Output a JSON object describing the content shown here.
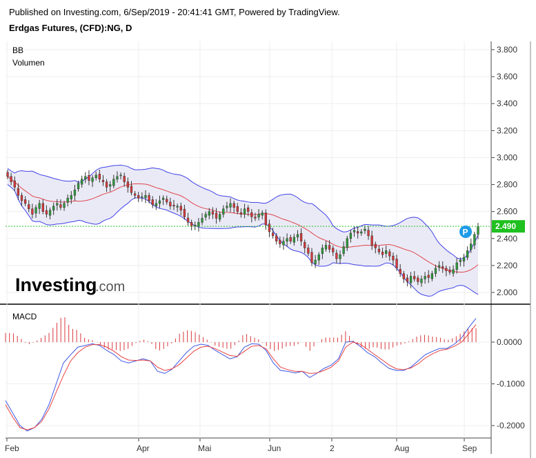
{
  "header": {
    "published": "Published on Investing.com, 6/Sep/2019 - 20:41:41 GMT, Powered by TradingView.",
    "title": "Erdgas Futures, (CFD):NG, D"
  },
  "main_panel": {
    "labels": [
      "BB",
      "Volumen"
    ],
    "last_price": "2.490",
    "y_ticks": [
      "3.800",
      "3.600",
      "3.400",
      "3.200",
      "3.000",
      "2.800",
      "2.600",
      "2.400",
      "2.200",
      "2.000"
    ],
    "logo_main": "Investing",
    "logo_suffix": ".com"
  },
  "macd_panel": {
    "label": "MACD",
    "y_ticks": [
      "0.0000",
      "-0.1000",
      "-0.2000"
    ]
  },
  "x_ticks": [
    "Feb",
    "Apr",
    "Mai",
    "Jun",
    "2",
    "Aug",
    "Sep"
  ],
  "colors": {
    "bull": "#2e9b3a",
    "bear": "#d9383a",
    "bb_band": "#4040e8",
    "bb_fill": "#e6e6f5",
    "bb_mid": "#e0454a",
    "macd_line": "#3b57e6",
    "signal_line": "#e84040",
    "last_price_bg": "#1fc01f",
    "price_line": "#22c022",
    "badge": "#1e9be8"
  },
  "chart_data": [
    {
      "type": "candlestick",
      "title": "Erdgas Futures, (CFD):NG, D",
      "indicators": [
        "BB",
        "Volumen"
      ],
      "ylim": [
        1.96,
        3.86
      ],
      "last_price": 2.49,
      "x_labels": [
        "Feb",
        "Apr",
        "Mai",
        "Jun",
        "2",
        "Aug",
        "Sep"
      ],
      "close": [
        2.86,
        2.82,
        2.78,
        2.72,
        2.68,
        2.66,
        2.62,
        2.58,
        2.63,
        2.66,
        2.6,
        2.58,
        2.61,
        2.64,
        2.66,
        2.63,
        2.66,
        2.7,
        2.72,
        2.76,
        2.81,
        2.84,
        2.86,
        2.83,
        2.85,
        2.87,
        2.84,
        2.82,
        2.78,
        2.8,
        2.84,
        2.86,
        2.87,
        2.82,
        2.78,
        2.74,
        2.72,
        2.7,
        2.71,
        2.72,
        2.68,
        2.65,
        2.66,
        2.68,
        2.7,
        2.67,
        2.64,
        2.64,
        2.64,
        2.61,
        2.56,
        2.52,
        2.49,
        2.5,
        2.52,
        2.55,
        2.58,
        2.6,
        2.58,
        2.55,
        2.58,
        2.62,
        2.64,
        2.66,
        2.63,
        2.6,
        2.58,
        2.62,
        2.6,
        2.56,
        2.55,
        2.58,
        2.59,
        2.5,
        2.45,
        2.42,
        2.38,
        2.36,
        2.38,
        2.4,
        2.38,
        2.41,
        2.43,
        2.38,
        2.33,
        2.29,
        2.22,
        2.24,
        2.28,
        2.33,
        2.35,
        2.32,
        2.3,
        2.25,
        2.28,
        2.34,
        2.4,
        2.44,
        2.46,
        2.44,
        2.45,
        2.47,
        2.42,
        2.35,
        2.33,
        2.3,
        2.28,
        2.31,
        2.27,
        2.24,
        2.18,
        2.14,
        2.1,
        2.08,
        2.12,
        2.1,
        2.08,
        2.1,
        2.12,
        2.11,
        2.14,
        2.18,
        2.2,
        2.18,
        2.16,
        2.15,
        2.17,
        2.22,
        2.24,
        2.26,
        2.31,
        2.36,
        2.43,
        2.49
      ]
    },
    {
      "type": "line",
      "title": "MACD",
      "ylim": [
        -0.23,
        0.07
      ],
      "series": [
        {
          "name": "MACD",
          "values": [
            -0.14,
            -0.17,
            -0.2,
            -0.213,
            -0.205,
            -0.185,
            -0.15,
            -0.1,
            -0.05,
            -0.03,
            -0.012,
            -0.008,
            -0.004,
            -0.008,
            -0.02,
            -0.03,
            -0.045,
            -0.05,
            -0.045,
            -0.04,
            -0.045,
            -0.07,
            -0.075,
            -0.065,
            -0.045,
            -0.025,
            -0.01,
            -0.005,
            -0.008,
            -0.02,
            -0.03,
            -0.04,
            -0.035,
            -0.012,
            -0.004,
            -0.005,
            -0.02,
            -0.05,
            -0.068,
            -0.07,
            -0.074,
            -0.07,
            -0.085,
            -0.075,
            -0.063,
            -0.055,
            -0.04,
            0,
            0.002,
            -0.01,
            -0.025,
            -0.035,
            -0.05,
            -0.063,
            -0.068,
            -0.068,
            -0.06,
            -0.045,
            -0.03,
            -0.022,
            -0.015,
            -0.015,
            -0.005,
            0.01,
            0.035,
            0.057
          ]
        },
        {
          "name": "Signal",
          "values": [
            -0.15,
            -0.18,
            -0.205,
            -0.21,
            -0.205,
            -0.19,
            -0.16,
            -0.12,
            -0.08,
            -0.045,
            -0.025,
            -0.012,
            -0.006,
            -0.006,
            -0.012,
            -0.022,
            -0.035,
            -0.043,
            -0.044,
            -0.043,
            -0.045,
            -0.06,
            -0.068,
            -0.064,
            -0.054,
            -0.038,
            -0.022,
            -0.012,
            -0.01,
            -0.016,
            -0.024,
            -0.032,
            -0.034,
            -0.022,
            -0.01,
            -0.008,
            -0.016,
            -0.04,
            -0.06,
            -0.066,
            -0.07,
            -0.07,
            -0.075,
            -0.074,
            -0.068,
            -0.06,
            -0.045,
            -0.012,
            0,
            -0.005,
            -0.017,
            -0.03,
            -0.042,
            -0.055,
            -0.064,
            -0.066,
            -0.062,
            -0.052,
            -0.038,
            -0.028,
            -0.02,
            -0.017,
            -0.01,
            0,
            0.02,
            0.042
          ]
        }
      ],
      "y_ticks": [
        0.0,
        -0.1,
        -0.2
      ]
    }
  ]
}
